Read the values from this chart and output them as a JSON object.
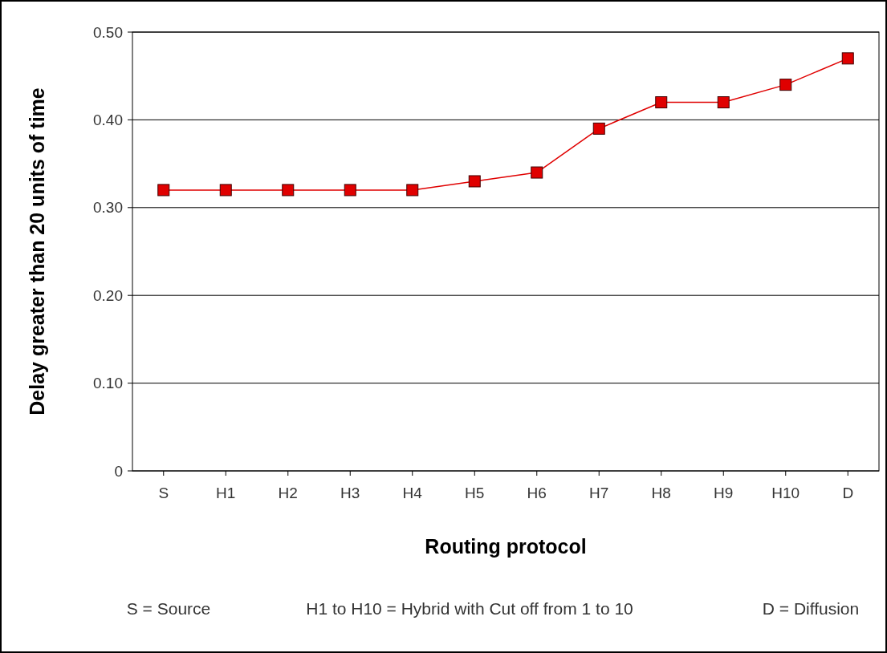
{
  "chart_data": {
    "type": "line",
    "xlabel": "Routing protocol",
    "ylabel": "Delay greater than 20 units of time",
    "categories": [
      "S",
      "H1",
      "H2",
      "H3",
      "H4",
      "H5",
      "H6",
      "H7",
      "H8",
      "H9",
      "H10",
      "D"
    ],
    "series": [
      {
        "color": "#e00000",
        "values": [
          0.32,
          0.32,
          0.32,
          0.32,
          0.32,
          0.33,
          0.34,
          0.39,
          0.42,
          0.42,
          0.44,
          0.47
        ]
      }
    ],
    "ylim": [
      0,
      0.5
    ],
    "yticks": [
      0,
      {
        "value": 0.1,
        "label": "0.10"
      },
      {
        "value": 0.2,
        "label": "0.20"
      },
      {
        "value": 0.3,
        "label": "0.30"
      },
      {
        "value": 0.4,
        "label": "0.40"
      },
      {
        "value": 0.5,
        "label": "0.50"
      }
    ],
    "grid": "y",
    "marker": "square",
    "line_style": "solid",
    "annotations": [
      "S = Source",
      "H1 to H10 = Hybrid with Cut off from 1 to 10",
      "D = Diffusion"
    ]
  }
}
